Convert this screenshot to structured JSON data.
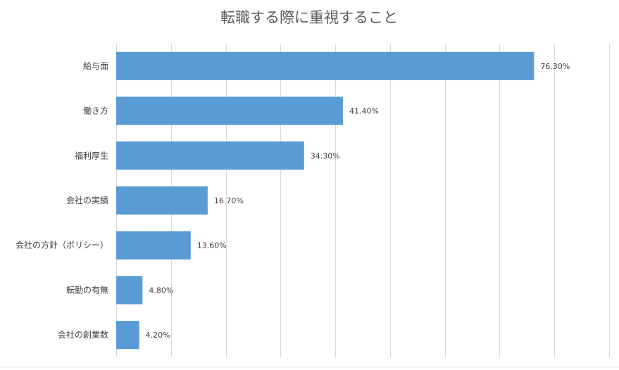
{
  "chart_data": {
    "type": "bar",
    "orientation": "horizontal",
    "title": "転職する際に重視すること",
    "categories": [
      "給与面",
      "働き方",
      "福利厚生",
      "会社の実績",
      "会社の方針（ポリシー）",
      "転勤の有無",
      "会社の創業数"
    ],
    "values": [
      76.3,
      41.4,
      34.3,
      16.7,
      13.6,
      4.8,
      4.2
    ],
    "data_labels": [
      "76.30%",
      "41.40%",
      "34.30%",
      "16.70%",
      "13.60%",
      "4.80%",
      "4.20%"
    ],
    "value_unit": "%",
    "xlim": [
      0,
      90
    ],
    "x_grid_step": 10,
    "grid": true,
    "x_tick_labels_shown": false,
    "legend": "none",
    "bar_color": "#5b9bd5"
  }
}
